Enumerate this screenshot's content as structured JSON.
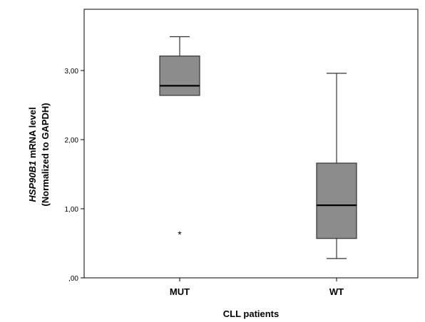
{
  "chart_data": {
    "type": "box",
    "xlabel": "CLL patients",
    "ylabel": {
      "italic": "HSP90B1",
      "rest": " mRNA level",
      "line2": "(Normalized to GAPDH)"
    },
    "ylim": [
      0,
      3.7
    ],
    "yticks": [
      {
        "value": 0,
        "label": ",00"
      },
      {
        "value": 1,
        "label": "1,00"
      },
      {
        "value": 2,
        "label": "2,00"
      },
      {
        "value": 3,
        "label": "3,00"
      }
    ],
    "categories": [
      "MUT",
      "WT"
    ],
    "boxes": [
      {
        "name": "MUT",
        "min": 2.64,
        "q1": 2.64,
        "median": 2.78,
        "q3": 3.21,
        "max": 3.49,
        "outliers": [
          0.66
        ]
      },
      {
        "name": "WT",
        "min": 0.28,
        "q1": 0.57,
        "median": 1.05,
        "q3": 1.66,
        "max": 2.96,
        "outliers": []
      }
    ],
    "outlier_marker": "*",
    "grid": false,
    "colors": {
      "box_fill": "#8c8c8c",
      "line": "#333333"
    }
  }
}
